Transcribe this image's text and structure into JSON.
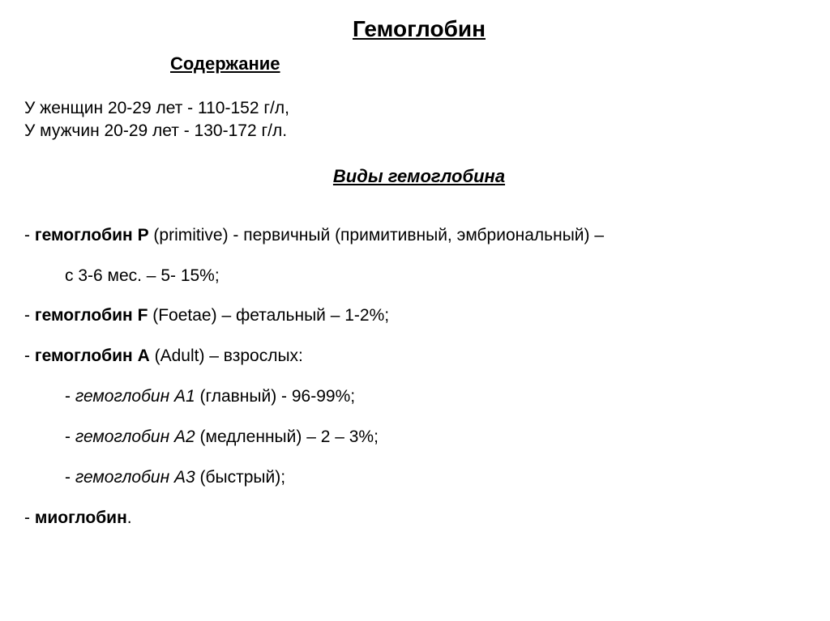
{
  "title": "Гемоглобин",
  "subtitle": "Содержание",
  "content": {
    "line1": "У женщин 20-29 лет - 110-152 г/л,",
    "line2": "У мужчин 20-29 лет - 130-172 г/л."
  },
  "section_heading": "Виды гемоглобина",
  "items": {
    "p_name": "гемоглобин Р",
    "p_rest": " (primitive) - первичный (примитивный, эмбриональный) –",
    "p_sub": "с 3-6 мес. – 5- 15%;",
    "f_name": "гемоглобин F",
    "f_rest": " (Foetae) – фетальный – 1-2%;",
    "a_name": "гемоглобин А",
    "a_rest": " (Adult) – взрослых:",
    "a1_name": "гемоглобин А1",
    "a1_rest": " (главный) - 96-99%;",
    "a2_name": "гемоглобин А2",
    "a2_rest": " (медленный) – 2 – 3%;",
    "a3_name": "гемоглобин А3",
    "a3_rest": " (быстрый);",
    "myo": "миоглобин",
    "dot": "."
  },
  "dash": "- "
}
